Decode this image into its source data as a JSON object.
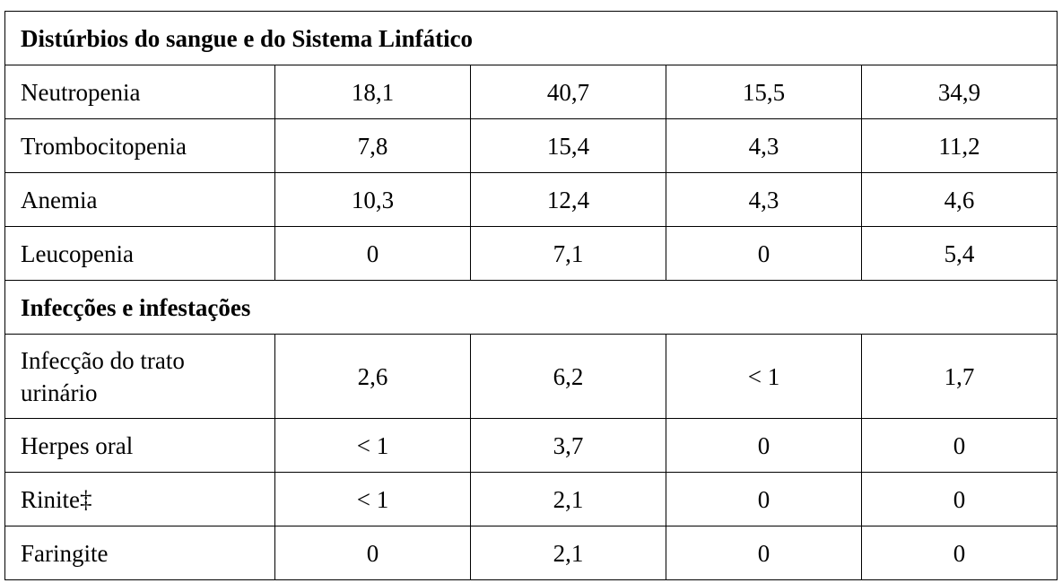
{
  "sections": [
    {
      "title": "Distúrbios do sangue e do Sistema Linfático",
      "rows": [
        {
          "label": "Neutropenia",
          "values": [
            "18,1",
            "40,7",
            "15,5",
            "34,9"
          ]
        },
        {
          "label": "Trombocitopenia",
          "values": [
            "7,8",
            "15,4",
            "4,3",
            "11,2"
          ]
        },
        {
          "label": "Anemia",
          "values": [
            "10,3",
            "12,4",
            "4,3",
            "4,6"
          ]
        },
        {
          "label": "Leucopenia",
          "values": [
            "0",
            "7,1",
            "0",
            "5,4"
          ]
        }
      ]
    },
    {
      "title": "Infecções e infestações",
      "rows": [
        {
          "label_line1": "Infecção do trato",
          "label_line2": "urinário",
          "values": [
            "2,6",
            "6,2",
            "< 1",
            "1,7"
          ]
        },
        {
          "label": "Herpes oral",
          "values": [
            "< 1",
            "3,7",
            "0",
            "0"
          ]
        },
        {
          "label": "Rinite‡",
          "values": [
            "< 1",
            "2,1",
            "0",
            "0"
          ]
        },
        {
          "label": "Faringite",
          "values": [
            "0",
            "2,1",
            "0",
            "0"
          ]
        }
      ]
    }
  ]
}
